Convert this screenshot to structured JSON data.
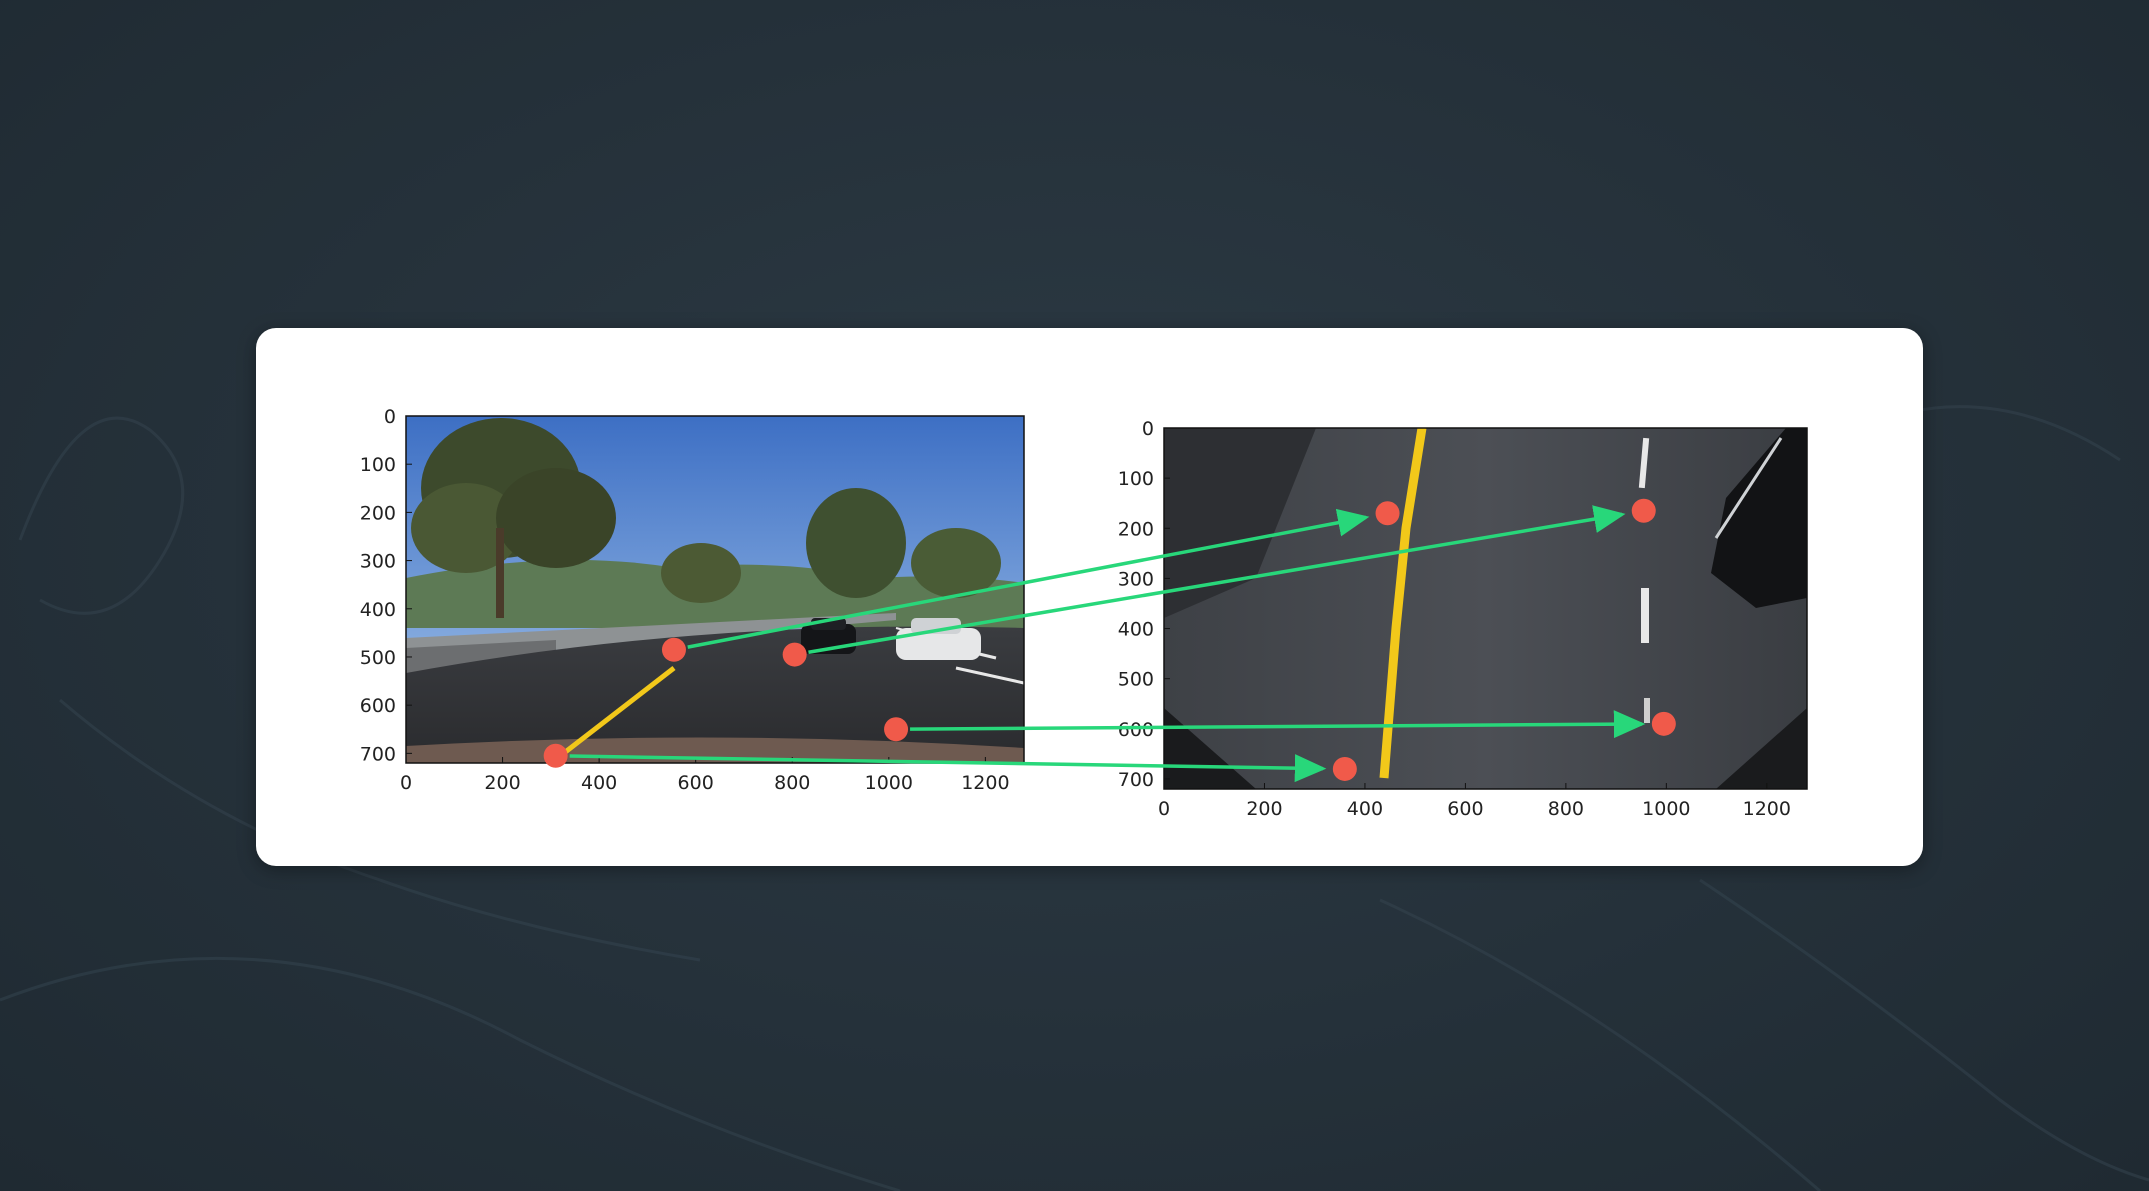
{
  "figure": {
    "left_plot": {
      "x_ticks": [
        "0",
        "200",
        "400",
        "600",
        "800",
        "1000",
        "1200"
      ],
      "y_ticks": [
        "0",
        "100",
        "200",
        "300",
        "400",
        "500",
        "600",
        "700"
      ],
      "xlim": [
        0,
        1280
      ],
      "ylim": [
        720,
        0
      ],
      "source_points": [
        {
          "x": 555,
          "y": 485
        },
        {
          "x": 805,
          "y": 495
        },
        {
          "x": 1015,
          "y": 650
        },
        {
          "x": 310,
          "y": 705
        }
      ]
    },
    "right_plot": {
      "x_ticks": [
        "0",
        "200",
        "400",
        "600",
        "800",
        "1000",
        "1200"
      ],
      "y_ticks": [
        "0",
        "100",
        "200",
        "300",
        "400",
        "500",
        "600",
        "700"
      ],
      "xlim": [
        0,
        1280
      ],
      "ylim": [
        720,
        0
      ],
      "destination_points": [
        {
          "x": 445,
          "y": 170
        },
        {
          "x": 955,
          "y": 165
        },
        {
          "x": 995,
          "y": 590
        },
        {
          "x": 360,
          "y": 680
        }
      ]
    },
    "colors": {
      "point": "#f05a4a",
      "arrow": "#28d77a",
      "lane_yellow": "#f2c81a",
      "card": "#ffffff",
      "background": "#25313a"
    }
  }
}
